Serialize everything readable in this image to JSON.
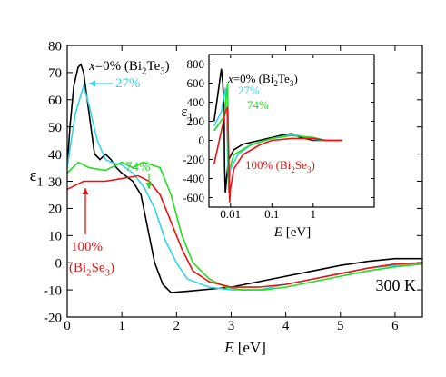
{
  "chart_data": [
    {
      "type": "line",
      "xlabel": "E [eV]",
      "ylabel": "ε1",
      "xlim": [
        0,
        6.5
      ],
      "xticks": [
        0,
        1,
        2,
        3,
        4,
        5,
        6
      ],
      "ylim": [
        -20,
        80
      ],
      "yticks": [
        -20,
        -10,
        0,
        10,
        20,
        30,
        40,
        50,
        60,
        70,
        80
      ],
      "series": [
        {
          "name": "0%",
          "color": "#000000",
          "x": [
            0,
            0.05,
            0.12,
            0.2,
            0.25,
            0.3,
            0.4,
            0.5,
            0.6,
            0.7,
            0.8,
            0.9,
            1.0,
            1.2,
            1.35,
            1.5,
            1.6,
            1.75,
            1.9,
            2.2,
            3.0,
            3.5,
            4.0,
            4.5,
            5.0,
            5.5,
            6.0,
            6.5
          ],
          "values": [
            35,
            50,
            65,
            72,
            73,
            70,
            55,
            40,
            38,
            40,
            38,
            35,
            33,
            30,
            25,
            10,
            0,
            -8,
            -11,
            -10.5,
            -9,
            -7,
            -5,
            -3,
            -1,
            0.5,
            1.5,
            1.5
          ]
        },
        {
          "name": "27%",
          "color": "#33d6e8",
          "x": [
            0,
            0.15,
            0.3,
            0.4,
            0.55,
            0.7,
            0.8,
            1.0,
            1.2,
            1.4,
            1.6,
            1.8,
            2.0,
            2.2,
            2.6,
            3.0,
            3.5,
            4.0,
            4.5,
            5.0,
            5.5,
            6.0,
            6.5
          ],
          "values": [
            35,
            55,
            65,
            58,
            45,
            38,
            37,
            36,
            33,
            28,
            20,
            8,
            0,
            -6,
            -9,
            -10,
            -10,
            -8,
            -6,
            -4,
            -2,
            -1,
            0
          ]
        },
        {
          "name": "74%",
          "color": "#22dd22",
          "x": [
            0,
            0.2,
            0.4,
            0.7,
            1.0,
            1.2,
            1.4,
            1.7,
            1.9,
            2.1,
            2.3,
            2.6,
            2.9,
            3.2,
            3.6,
            4.0,
            4.5,
            5.0,
            5.5,
            6.0,
            6.5
          ],
          "values": [
            33,
            37,
            35,
            34,
            37,
            35,
            37,
            35,
            25,
            10,
            0,
            -6,
            -9,
            -10,
            -10,
            -9,
            -7,
            -5,
            -3,
            -1.5,
            -0.5
          ]
        },
        {
          "name": "100%",
          "color": "#ee1111",
          "x": [
            0,
            0.3,
            0.7,
            1.0,
            1.3,
            1.5,
            1.7,
            1.9,
            2.1,
            2.3,
            2.6,
            3.0,
            3.5,
            4.0,
            4.5,
            5.0,
            5.5,
            6.0,
            6.5
          ],
          "values": [
            27,
            30,
            30,
            31,
            32,
            30,
            25,
            15,
            5,
            -3,
            -7,
            -9,
            -9,
            -8,
            -6,
            -4,
            -2,
            -0.5,
            0
          ]
        }
      ],
      "annotations": [
        {
          "text": "x=0% (Bi2Te3)",
          "color": "#000000"
        },
        {
          "text": "27%",
          "color": "#33d6e8"
        },
        {
          "text": "74%",
          "color": "#22dd22"
        },
        {
          "text": "100%",
          "color": "#ee1111"
        },
        {
          "text": "(Bi2Se3)",
          "color": "#ee1111"
        },
        {
          "text": "300 K",
          "color": "#000000"
        }
      ]
    },
    {
      "type": "line",
      "xlabel": "E [eV]",
      "ylabel": "ε1",
      "xscale": "log",
      "xlim": [
        0.003,
        30
      ],
      "xticks": [
        0.01,
        0.1,
        1
      ],
      "ylim": [
        -700,
        900
      ],
      "yticks": [
        -600,
        -400,
        -200,
        0,
        200,
        400,
        600,
        800
      ],
      "series": [
        {
          "name": "0%",
          "color": "#000000",
          "x": [
            0.004,
            0.005,
            0.006,
            0.0065,
            0.007,
            0.0072,
            0.0075,
            0.008,
            0.009,
            0.012,
            0.02,
            0.05,
            0.1,
            0.2,
            0.3,
            0.5,
            1,
            2,
            5
          ],
          "values": [
            200,
            500,
            750,
            600,
            300,
            -300,
            -550,
            -400,
            -200,
            -100,
            -40,
            0,
            30,
            60,
            70,
            30,
            0,
            0,
            0
          ]
        },
        {
          "name": "27%",
          "color": "#33d6e8",
          "x": [
            0.004,
            0.006,
            0.0075,
            0.008,
            0.0085,
            0.009,
            0.01,
            0.015,
            0.03,
            0.1,
            0.3,
            0.6,
            1,
            2,
            5
          ],
          "values": [
            150,
            300,
            550,
            300,
            -150,
            -500,
            -300,
            -150,
            -50,
            20,
            60,
            40,
            10,
            0,
            0
          ]
        },
        {
          "name": "74%",
          "color": "#22dd22",
          "x": [
            0.004,
            0.007,
            0.0085,
            0.0088,
            0.009,
            0.0095,
            0.012,
            0.03,
            0.1,
            0.3,
            1,
            2,
            5
          ],
          "values": [
            100,
            250,
            600,
            0,
            -550,
            -300,
            -150,
            -50,
            20,
            50,
            30,
            0,
            0
          ]
        },
        {
          "name": "100%",
          "color": "#ee1111",
          "x": [
            0.004,
            0.006,
            0.0075,
            0.0085,
            0.009,
            0.0095,
            0.01,
            0.012,
            0.02,
            0.05,
            0.1,
            0.3,
            1,
            2,
            5
          ],
          "values": [
            -250,
            100,
            300,
            350,
            -100,
            -650,
            -500,
            -300,
            -150,
            -50,
            0,
            20,
            20,
            0,
            0
          ]
        }
      ],
      "annotations": [
        {
          "text": "x=0% (Bi2Te3)",
          "color": "#000000"
        },
        {
          "text": "27%",
          "color": "#33d6e8"
        },
        {
          "text": "74%",
          "color": "#22dd22"
        },
        {
          "text": "100% (Bi2Se3)",
          "color": "#ee1111"
        }
      ]
    }
  ]
}
